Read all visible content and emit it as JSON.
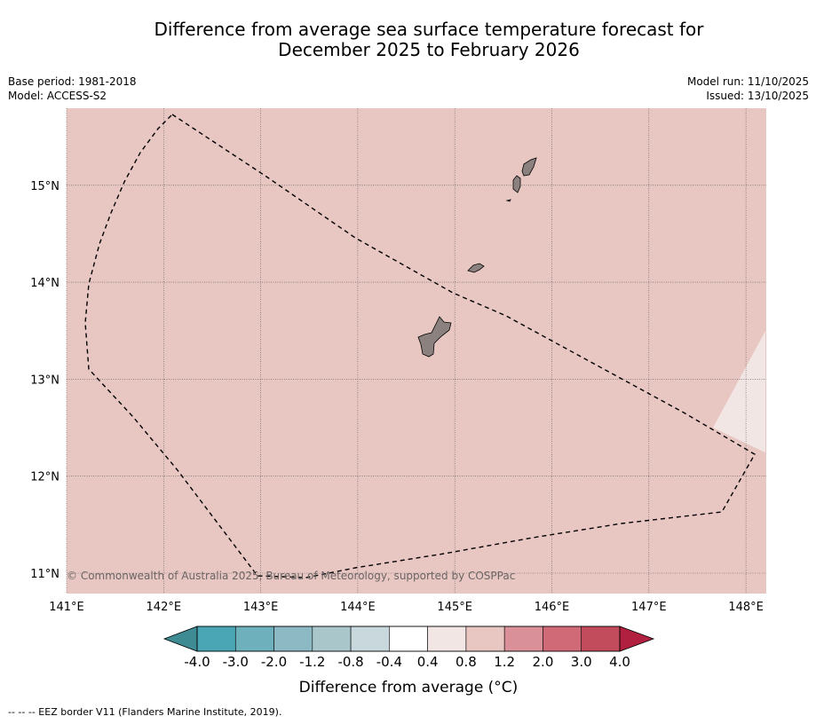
{
  "title": {
    "line1": "Difference from average sea surface temperature forecast for",
    "line2": "December 2025 to February 2026"
  },
  "meta": {
    "base_period": "Base period: 1981-2018",
    "model": "Model: ACCESS-S2",
    "model_run": "Model run: 11/10/2025",
    "issued": "Issued: 13/10/2025"
  },
  "map": {
    "lon_range": [
      141.0,
      148.2
    ],
    "lat_range": [
      10.8,
      15.8
    ],
    "lon_ticks": [
      "141°E",
      "142°E",
      "143°E",
      "144°E",
      "145°E",
      "146°E",
      "147°E",
      "148°E"
    ],
    "lat_ticks": [
      "11°N",
      "12°N",
      "13°N",
      "14°N",
      "15°N"
    ],
    "base_fill": "#e8c6c2",
    "warm_patch_fill": "#f2e6e4",
    "land_fill": "#8b8280",
    "copyright": "© Commonwealth of Australia 2025, Bureau of Meteorology, supported by COSPPac"
  },
  "colorbar": {
    "title": "Difference from average (°C)",
    "tick_labels": [
      "-4.0",
      "-3.0",
      "-2.0",
      "-1.2",
      "-0.8",
      "-0.4",
      "0.4",
      "0.8",
      "1.2",
      "2.0",
      "3.0",
      "4.0"
    ],
    "colors": [
      "#4aa5b5",
      "#6fb0bd",
      "#8cb9c3",
      "#a9c6cb",
      "#c8d8dc",
      "#ffffff",
      "#f2e6e4",
      "#e8c6c2",
      "#d99099",
      "#cf6a76",
      "#c24b5c"
    ],
    "low_extend_color": "#3f8b94",
    "high_extend_color": "#b22040"
  },
  "footer": {
    "text": "--  --  -- EEZ border V11 (Flanders Marine Institute, 2019)."
  }
}
